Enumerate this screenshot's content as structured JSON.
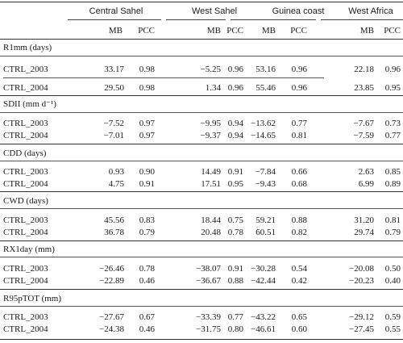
{
  "header": {
    "groups": [
      "Central Sahel",
      "West Sahel",
      "Guinea coast",
      "West Africa"
    ],
    "mb": "MB",
    "pcc": "PCC"
  },
  "sections": [
    {
      "title": "R1mm (days)",
      "rows": [
        {
          "label": "CTRL_2003",
          "values": [
            "33.17",
            "0.98",
            "−5.25",
            "0.96",
            "53.16",
            "0.96",
            "22.18",
            "0.96"
          ]
        },
        {
          "label": "CTRL_2004",
          "values": [
            "29.50",
            "0.98",
            "1.34",
            "0.96",
            "55.46",
            "0.96",
            "23.85",
            "0.95"
          ]
        }
      ]
    },
    {
      "title": "SDII (mm d⁻¹)",
      "rows": [
        {
          "label": "CTRL_2003",
          "values": [
            "−7.52",
            "0.97",
            "−9.95",
            "0.94",
            "−13.62",
            "0.77",
            "−7.67",
            "0.73"
          ]
        },
        {
          "label": "CTRL_2004",
          "values": [
            "−7.01",
            "0.97",
            "−9.37",
            "0.94",
            "−14.65",
            "0.81",
            "−7.59",
            "0.77"
          ]
        }
      ]
    },
    {
      "title": "CDD (days)",
      "rows": [
        {
          "label": "CTRL_2003",
          "values": [
            "0.93",
            "0.90",
            "14.49",
            "0.91",
            "−7.84",
            "0.66",
            "2.63",
            "0.85"
          ]
        },
        {
          "label": "CTRL_2004",
          "values": [
            "4.75",
            "0.91",
            "17.51",
            "0.95",
            "−9.43",
            "0.68",
            "6.99",
            "0.89"
          ]
        }
      ]
    },
    {
      "title": "CWD (days)",
      "rows": [
        {
          "label": "CTRL_2003",
          "values": [
            "45.56",
            "0.83",
            "18.44",
            "0.75",
            "59.21",
            "0.88",
            "31.20",
            "0.81"
          ]
        },
        {
          "label": "CTRL_2004",
          "values": [
            "36.78",
            "0.79",
            "20.48",
            "0.78",
            "60.51",
            "0.82",
            "29.74",
            "0.79"
          ]
        }
      ]
    },
    {
      "title": "RX1day (mm)",
      "rows": [
        {
          "label": "CTRL_2003",
          "values": [
            "−26.46",
            "0.78",
            "−38.07",
            "0.91",
            "−30.28",
            "0.54",
            "−20.08",
            "0.50"
          ]
        },
        {
          "label": "CTRL_2004",
          "values": [
            "−22.89",
            "0.46",
            "−36.67",
            "0.88",
            "−42.44",
            "0.42",
            "−20.23",
            "0.40"
          ]
        }
      ]
    },
    {
      "title": "R95pTOT (mm)",
      "rows": [
        {
          "label": "CTRL_2003",
          "values": [
            "−27.67",
            "0.67",
            "−33.39",
            "0.77",
            "−43.22",
            "0.65",
            "−29.12",
            "0.59"
          ]
        },
        {
          "label": "CTRL_2004",
          "values": [
            "−24.38",
            "0.46",
            "−31.75",
            "0.80",
            "−46.61",
            "0.60",
            "−27.45",
            "0.55"
          ]
        }
      ]
    }
  ]
}
